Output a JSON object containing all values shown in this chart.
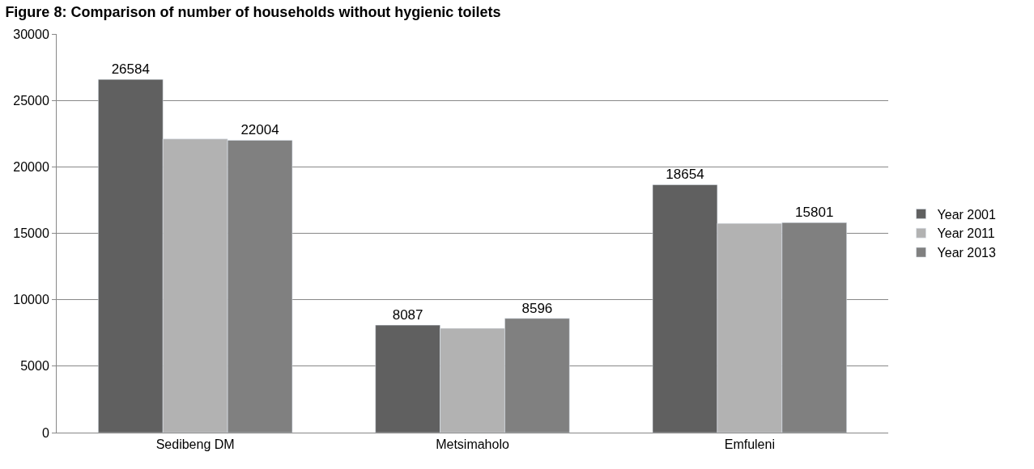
{
  "chart_data": {
    "type": "bar",
    "title": "Figure 8: Comparison of number of households without hygienic toilets",
    "categories": [
      "Sedibeng DM",
      "Metsimaholo",
      "Emfuleni"
    ],
    "series": [
      {
        "name": "Year 2001",
        "color": "#606060",
        "values": [
          26584,
          8087,
          18654
        ],
        "value_labels": [
          "26584",
          "8087",
          "18654"
        ]
      },
      {
        "name": "Year 2011",
        "color": "#b2b2b2",
        "values": [
          22100,
          7850,
          15750
        ],
        "value_labels": [
          null,
          null,
          null
        ]
      },
      {
        "name": "Year 2013",
        "color": "#808080",
        "values": [
          22004,
          8596,
          15801
        ],
        "value_labels": [
          "22004",
          "8596",
          "15801"
        ]
      }
    ],
    "ylim": [
      0,
      30000
    ],
    "yticks": [
      0,
      5000,
      10000,
      15000,
      20000,
      25000,
      30000
    ],
    "grid": "y",
    "legend": "right"
  }
}
